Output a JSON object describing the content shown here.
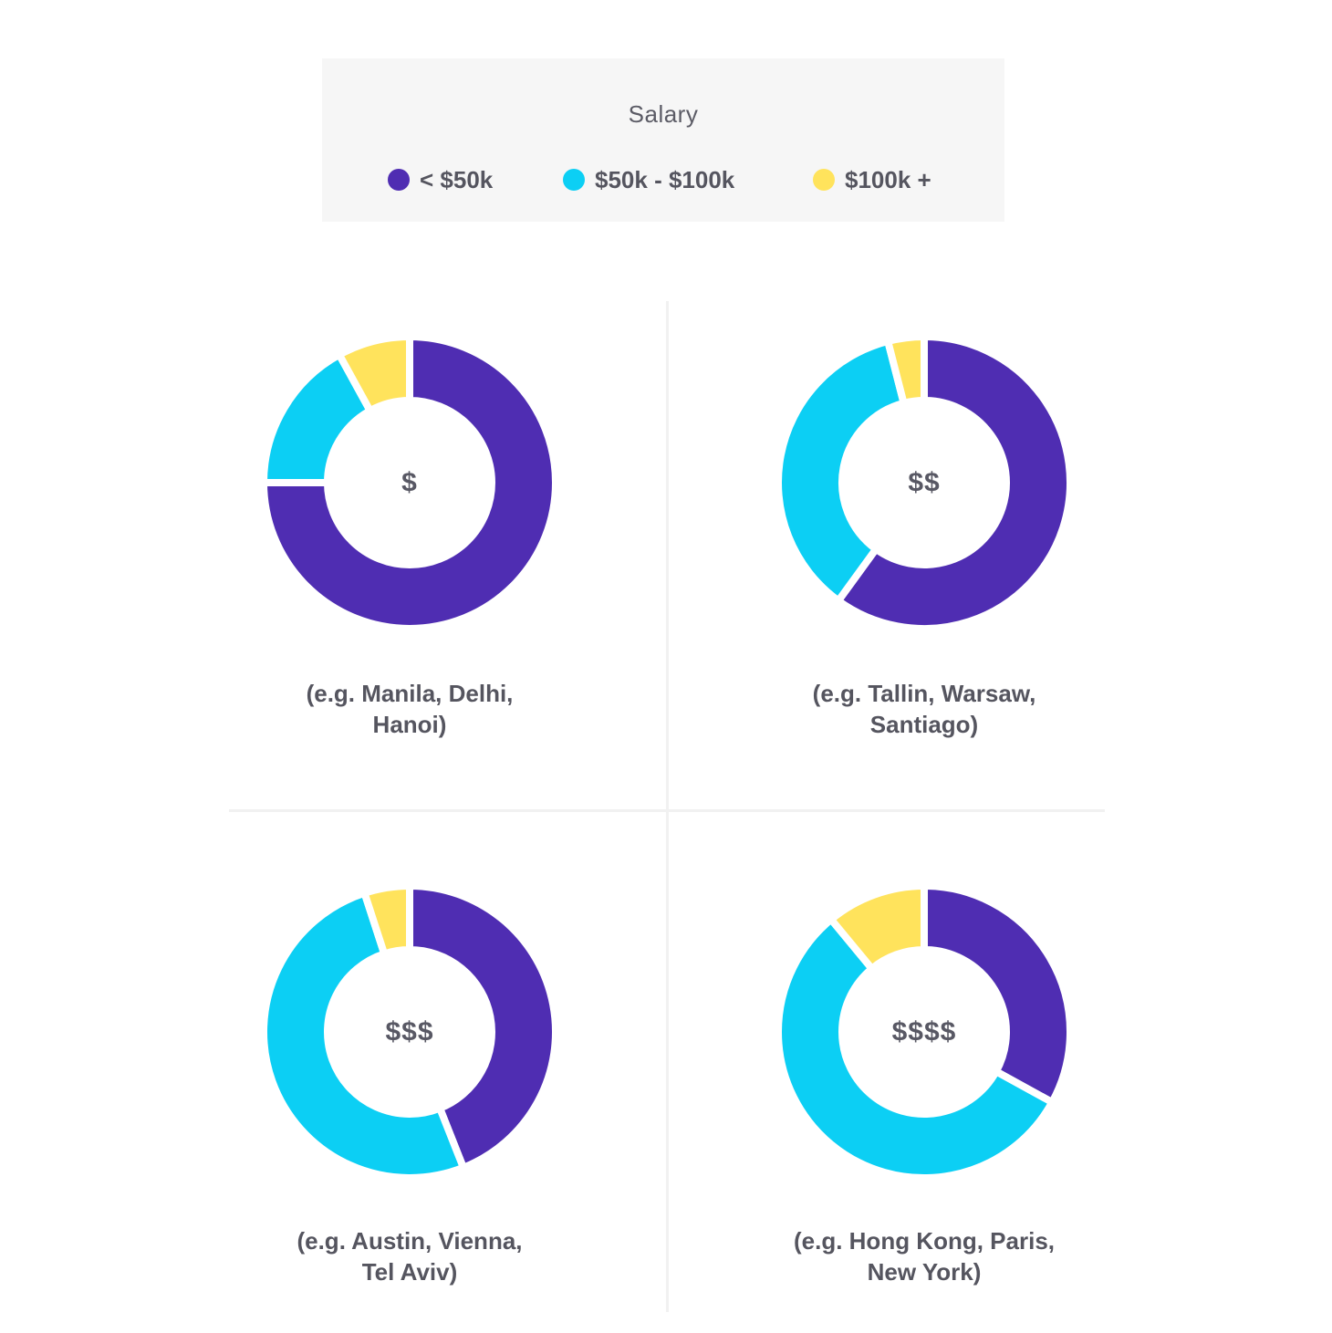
{
  "legend": {
    "title": "Salary",
    "items": [
      {
        "label": "< $50k",
        "color": "#4f2db2"
      },
      {
        "label": "$50k - $100k",
        "color": "#0ccff4"
      },
      {
        "label": "$100k +",
        "color": "#ffe35c"
      }
    ]
  },
  "chart_data": [
    {
      "type": "pie",
      "variant": "donut",
      "center_label": "$",
      "caption_lines": [
        "(e.g. Manila, Delhi,",
        "Hanoi)"
      ],
      "categories": [
        "< $50k",
        "$50k - $100k",
        "$100k +"
      ],
      "values": [
        75,
        17,
        8
      ]
    },
    {
      "type": "pie",
      "variant": "donut",
      "center_label": "$$",
      "caption_lines": [
        "(e.g. Tallin, Warsaw,",
        "Santiago)"
      ],
      "categories": [
        "< $50k",
        "$50k - $100k",
        "$100k +"
      ],
      "values": [
        60,
        36,
        4
      ]
    },
    {
      "type": "pie",
      "variant": "donut",
      "center_label": "$$$",
      "caption_lines": [
        "(e.g. Austin, Vienna,",
        "Tel Aviv)"
      ],
      "categories": [
        "< $50k",
        "$50k - $100k",
        "$100k +"
      ],
      "values": [
        44,
        51,
        5
      ]
    },
    {
      "type": "pie",
      "variant": "donut",
      "center_label": "$$$$",
      "caption_lines": [
        "(e.g. Hong Kong, Paris,",
        "New York)"
      ],
      "categories": [
        "< $50k",
        "$50k - $100k",
        "$100k +"
      ],
      "values": [
        33,
        56,
        11
      ]
    }
  ]
}
